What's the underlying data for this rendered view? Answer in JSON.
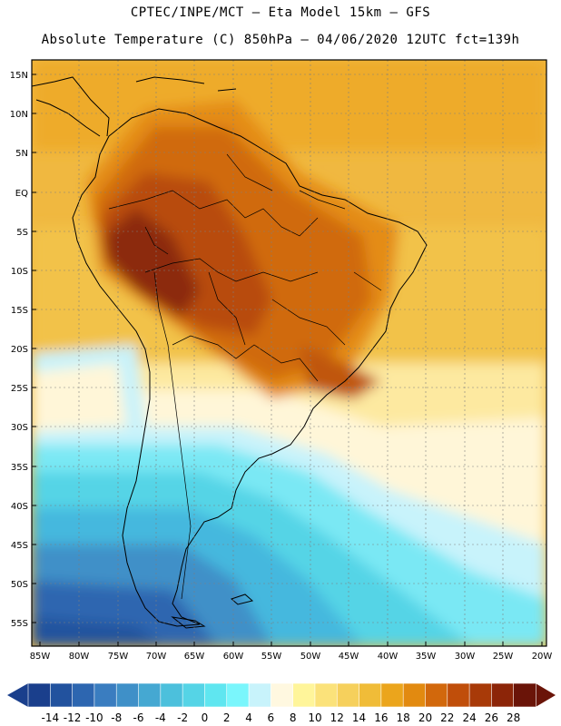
{
  "header": {
    "line1": "CPTEC/INPE/MCT –  Eta Model 15km – GFS",
    "line2": "Absolute Temperature (C) 850hPa – 04/06/2020 12UTC fct=139h"
  },
  "axes": {
    "lat_labels": [
      "15N",
      "10N",
      "5N",
      "EQ",
      "5S",
      "10S",
      "15S",
      "20S",
      "25S",
      "30S",
      "35S",
      "40S",
      "45S",
      "50S",
      "55S"
    ],
    "lon_labels": [
      "85W",
      "80W",
      "75W",
      "70W",
      "65W",
      "60W",
      "55W",
      "50W",
      "45W",
      "40W",
      "35W",
      "30W",
      "25W",
      "20W"
    ]
  },
  "colorbar": {
    "labels": [
      "-14",
      "-12",
      "-10",
      "-8",
      "-6",
      "-4",
      "-2",
      "0",
      "2",
      "4",
      "6",
      "8",
      "10",
      "12",
      "14",
      "16",
      "18",
      "20",
      "22",
      "24",
      "26",
      "28"
    ],
    "colors": [
      "#1a3f8c",
      "#22529e",
      "#2d66b0",
      "#3a7dc0",
      "#3f90c8",
      "#45a8d2",
      "#4cc0dc",
      "#55d4e6",
      "#5fe6f0",
      "#7af6fc",
      "#c8f3fb",
      "#fff8e0",
      "#fff59a",
      "#fbe27a",
      "#f6d05c",
      "#f0bc38",
      "#eba51c",
      "#e28a10",
      "#d2680c",
      "#c04e0a",
      "#a83a08",
      "#8c2508",
      "#6a1408"
    ],
    "low_color": "#1a3f8c",
    "high_color": "#6a1408"
  }
}
